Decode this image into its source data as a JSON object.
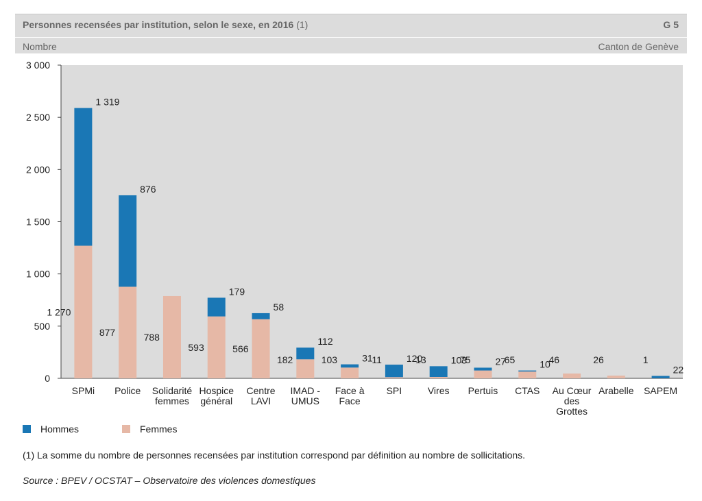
{
  "header": {
    "title": "Personnes recensées par institution, selon le sexe, en 2016",
    "title_note": "(1)",
    "graph_number": "G 5",
    "unit": "Nombre",
    "region": "Canton de Genève"
  },
  "legend": {
    "hommes": "Hommes",
    "femmes": "Femmes"
  },
  "footnote": "(1) La somme du nombre de personnes recensées par institution correspond par définition au nombre de sollicitations.",
  "source": "Source : BPEV / OCSTAT – Observatoire des violences domestiques",
  "colors": {
    "hommes": "#1a77b5",
    "femmes": "#e6b8a6",
    "plot_bg": "#dcdcdc"
  },
  "chart_data": {
    "type": "bar",
    "stacked": true,
    "categories": [
      [
        "SPMi"
      ],
      [
        "Police"
      ],
      [
        "Solidarité",
        "femmes"
      ],
      [
        "Hospice",
        "général"
      ],
      [
        "Centre",
        "LAVI"
      ],
      [
        "IMAD -",
        "UMUS"
      ],
      [
        "Face à",
        "Face"
      ],
      [
        "SPI"
      ],
      [
        "Vires"
      ],
      [
        "Pertuis"
      ],
      [
        "CTAS"
      ],
      [
        "Au Cœur",
        "des",
        "Grottes"
      ],
      [
        "Arabelle"
      ],
      [
        "SAPEM"
      ]
    ],
    "series": [
      {
        "name": "Femmes",
        "values": [
          1270,
          877,
          788,
          593,
          566,
          182,
          103,
          11,
          13,
          75,
          65,
          46,
          26,
          1
        ],
        "labels": [
          "1 270",
          "877",
          "788",
          "593",
          "566",
          "182",
          "103",
          "11",
          "13",
          "75",
          "65",
          "46",
          "26",
          "1"
        ]
      },
      {
        "name": "Hommes",
        "values": [
          1319,
          876,
          0,
          179,
          58,
          112,
          31,
          120,
          103,
          27,
          10,
          0,
          0,
          22
        ],
        "labels": [
          "1 319",
          "876",
          "",
          "179",
          "58",
          "112",
          "31",
          "120",
          "103",
          "27",
          "10",
          "",
          "",
          "22"
        ]
      }
    ],
    "ylim": [
      0,
      3000
    ],
    "yticks": [
      0,
      500,
      1000,
      1500,
      2000,
      2500,
      3000
    ],
    "ytick_labels": [
      "0",
      "500",
      "1 000",
      "1 500",
      "2 000",
      "2 500",
      "3 000"
    ],
    "grid": false,
    "legend_position": "bottom-left"
  }
}
